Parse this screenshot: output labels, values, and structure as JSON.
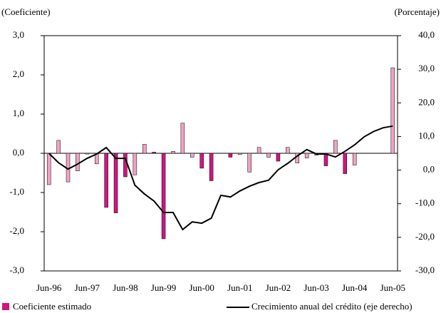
{
  "chart_data": {
    "type": "bar-line",
    "y_axis_label": "(Coeficiente)",
    "y2_axis_label": "(Porcentaje)",
    "categories": [
      "Jun-96",
      null,
      null,
      null,
      "Jun-97",
      null,
      null,
      null,
      "Jun-98",
      null,
      null,
      null,
      "Jun-99",
      null,
      null,
      null,
      "Jun-00",
      null,
      null,
      null,
      "Jun-01",
      null,
      null,
      null,
      "Jun-02",
      null,
      null,
      null,
      "Jun-03",
      null,
      null,
      null,
      "Jun-04",
      null,
      null,
      null,
      "Jun-05"
    ],
    "series": [
      {
        "name": "Coeficiente estimado",
        "color": "#d0157f",
        "values": [
          -0.8,
          0.33,
          -0.73,
          -0.45,
          -0.02,
          -0.27,
          -1.38,
          -1.52,
          -0.6,
          -0.55,
          0.23,
          0.03,
          -2.18,
          0.05,
          0.77,
          -0.1,
          -0.38,
          -0.7,
          0,
          -0.1,
          -0.03,
          -0.48,
          0.15,
          -0.1,
          -0.2,
          0.15,
          -0.25,
          -0.12,
          -0.05,
          -0.32,
          0.33,
          -0.52,
          -0.3,
          0,
          0,
          0,
          2.18
        ],
        "bar_colors": [
          "#f0a3c4",
          "#f0a3c4",
          "#f0a3c4",
          "#f0a3c4",
          "#f0a3c4",
          "#f0a3c4",
          "#d0157f",
          "#d0157f",
          "#d0157f",
          "#f0a3c4",
          "#f0a3c4",
          "#d0157f",
          "#d0157f",
          "#f0a3c4",
          "#f0a3c4",
          "#f0a3c4",
          "#d0157f",
          "#d0157f",
          "#f0a3c4",
          "#d0157f",
          "#f0a3c4",
          "#f0a3c4",
          "#f0a3c4",
          "#f0a3c4",
          "#d0157f",
          "#f0a3c4",
          "#f0a3c4",
          "#f0a3c4",
          "#f0a3c4",
          "#d0157f",
          "#f0a3c4",
          "#d0157f",
          "#f0a3c4",
          "#f0a3c4",
          "#f0a3c4",
          "#f0a3c4",
          "#f0a3c4"
        ]
      },
      {
        "name": "Crecimiento anual del crédito (eje derecho)",
        "color": "#000000",
        "axis": "y2",
        "values": [
          5.0,
          2.2,
          0.3,
          1.8,
          3.5,
          4.8,
          6.7,
          3.5,
          3.5,
          -4.5,
          -7.1,
          -9.2,
          -12.6,
          -12.6,
          -17.7,
          -15.4,
          -15.8,
          -14.3,
          -7.5,
          -8.0,
          -6.2,
          -4.8,
          -3.7,
          -3.0,
          0.1,
          2.0,
          4.2,
          6.1,
          4.8,
          4.8,
          3.9,
          5.6,
          7.5,
          9.9,
          11.5,
          12.6,
          13.1
        ]
      }
    ],
    "ylim": [
      -3,
      3
    ],
    "yticks": [
      {
        "value": -3,
        "label": "-3,0"
      },
      {
        "value": -2,
        "label": "-2,0"
      },
      {
        "value": -1,
        "label": "-1,0"
      },
      {
        "value": 0,
        "label": "0,0"
      },
      {
        "value": 1,
        "label": "1,0"
      },
      {
        "value": 2,
        "label": "2,0"
      },
      {
        "value": 3,
        "label": "3,0"
      }
    ],
    "y2lim": [
      -30,
      40
    ],
    "y2ticks": [
      {
        "value": -30,
        "label": "-30,0"
      },
      {
        "value": -20,
        "label": "-20,0"
      },
      {
        "value": -10,
        "label": "-10,0"
      },
      {
        "value": 0,
        "label": "0,0"
      },
      {
        "value": 10,
        "label": "10,0"
      },
      {
        "value": 20,
        "label": "20,0"
      },
      {
        "value": 30,
        "label": "30,0"
      },
      {
        "value": 40,
        "label": "40,0"
      }
    ]
  }
}
